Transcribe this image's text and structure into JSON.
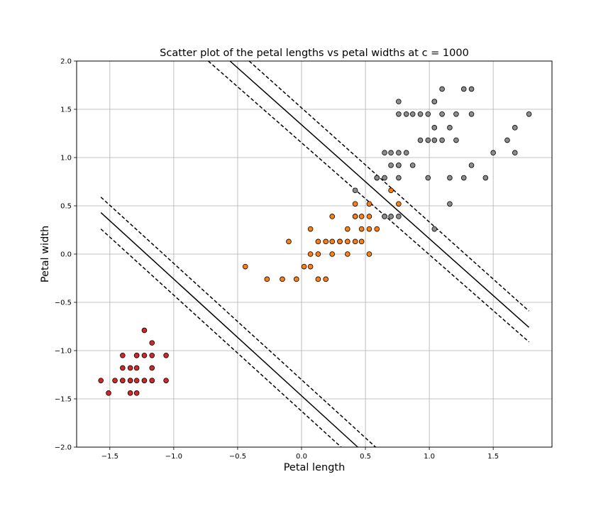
{
  "chart_data": {
    "type": "scatter",
    "title": "Scatter plot of the petal lengths vs petal widths at c = 1000",
    "xlabel": "Petal length",
    "ylabel": "Petal width",
    "xlim": [
      -1.76,
      1.96
    ],
    "ylim": [
      -2.0,
      2.0
    ],
    "xticks": [
      -1.5,
      -1.0,
      -0.5,
      0.0,
      0.5,
      1.0,
      1.5
    ],
    "xtick_labels": [
      "−1.5",
      "−1.0",
      "−0.5",
      "0.0",
      "0.5",
      "1.0",
      "1.5"
    ],
    "yticks": [
      2.0,
      1.5,
      1.0,
      0.5,
      0.0,
      -0.5,
      -1.0,
      -1.5,
      -2.0
    ],
    "ytick_labels": [
      "2.0",
      "1.5",
      "1.0",
      "0.5",
      "0.0",
      "−0.5",
      "−1.0",
      "−1.5",
      "−2.0"
    ],
    "grid": true,
    "series": [
      {
        "color": "#d62728",
        "x": [
          -1.57,
          -1.51,
          -1.46,
          -1.4,
          -1.4,
          -1.4,
          -1.4,
          -1.34,
          -1.34,
          -1.34,
          -1.34,
          -1.29,
          -1.29,
          -1.29,
          -1.29,
          -1.29,
          -1.23,
          -1.23,
          -1.23,
          -1.23,
          -1.17,
          -1.17,
          -1.17,
          -1.17,
          -1.17,
          -1.06,
          -1.06
        ],
        "y": [
          -1.31,
          -1.44,
          -1.31,
          -1.05,
          -1.18,
          -1.31,
          -1.31,
          -1.18,
          -1.31,
          -1.44,
          -1.31,
          -1.05,
          -1.18,
          -1.31,
          -1.44,
          -1.05,
          -0.79,
          -1.05,
          -1.31,
          -1.31,
          -0.92,
          -1.05,
          -1.18,
          -1.31,
          -1.31,
          -1.05,
          -1.31
        ]
      },
      {
        "color": "#ff7f0e",
        "x": [
          -0.44,
          -0.27,
          -0.15,
          -0.1,
          -0.04,
          0.02,
          0.07,
          0.07,
          0.07,
          0.13,
          0.13,
          0.13,
          0.19,
          0.19,
          0.24,
          0.24,
          0.24,
          0.3,
          0.3,
          0.36,
          0.36,
          0.36,
          0.42,
          0.42,
          0.42,
          0.42,
          0.47,
          0.47,
          0.47,
          0.53,
          0.53,
          0.53,
          0.53,
          0.59,
          0.65,
          0.7,
          0.76
        ],
        "y": [
          -0.13,
          -0.26,
          -0.26,
          0.13,
          -0.26,
          -0.13,
          -0.13,
          0.26,
          0.0,
          0.13,
          0.0,
          -0.26,
          0.13,
          -0.26,
          0.39,
          0.13,
          0.0,
          0.13,
          0.13,
          0.26,
          0.13,
          0.0,
          0.52,
          0.39,
          0.39,
          0.13,
          0.39,
          0.26,
          0.13,
          0.52,
          0.39,
          0.26,
          0.0,
          0.26,
          0.39,
          0.66,
          0.52
        ]
      },
      {
        "color": "#8c8c8c",
        "x": [
          0.42,
          0.59,
          0.59,
          0.65,
          0.65,
          0.65,
          0.7,
          0.7,
          0.7,
          0.76,
          0.76,
          0.76,
          0.76,
          0.76,
          0.76,
          0.76,
          0.82,
          0.82,
          0.87,
          0.87,
          0.93,
          0.93,
          0.99,
          0.99,
          0.99,
          1.04,
          1.04,
          1.04,
          1.04,
          1.04,
          1.1,
          1.1,
          1.1,
          1.16,
          1.16,
          1.16,
          1.21,
          1.21,
          1.27,
          1.27,
          1.33,
          1.33,
          1.33,
          1.44,
          1.5,
          1.61,
          1.67,
          1.67,
          1.78
        ],
        "y": [
          0.66,
          0.79,
          0.79,
          1.05,
          0.79,
          0.39,
          1.05,
          0.92,
          0.39,
          1.58,
          1.45,
          1.05,
          0.92,
          0.92,
          0.79,
          0.39,
          1.45,
          1.05,
          1.45,
          0.92,
          1.45,
          1.18,
          1.18,
          0.79,
          1.45,
          1.58,
          1.58,
          1.31,
          1.18,
          0.26,
          1.71,
          1.45,
          1.18,
          1.31,
          0.79,
          0.52,
          1.45,
          1.18,
          1.71,
          0.79,
          1.71,
          1.45,
          0.92,
          0.79,
          1.05,
          1.18,
          1.31,
          1.05,
          1.45
        ]
      }
    ],
    "decision_lines": [
      {
        "style": "solid",
        "x": [
          -0.56,
          1.78
        ],
        "y": [
          2.0,
          -0.76
        ]
      },
      {
        "style": "dashed",
        "x": [
          -0.41,
          1.78
        ],
        "y": [
          2.0,
          -0.59
        ]
      },
      {
        "style": "dashed",
        "x": [
          -0.73,
          1.78
        ],
        "y": [
          2.0,
          -0.91
        ]
      },
      {
        "style": "solid",
        "x": [
          -1.57,
          0.44
        ],
        "y": [
          0.43,
          -2.0
        ]
      },
      {
        "style": "dashed",
        "x": [
          -1.57,
          0.58
        ],
        "y": [
          0.59,
          -2.0
        ]
      },
      {
        "style": "dashed",
        "x": [
          -1.57,
          0.31
        ],
        "y": [
          0.26,
          -2.0
        ]
      }
    ]
  }
}
